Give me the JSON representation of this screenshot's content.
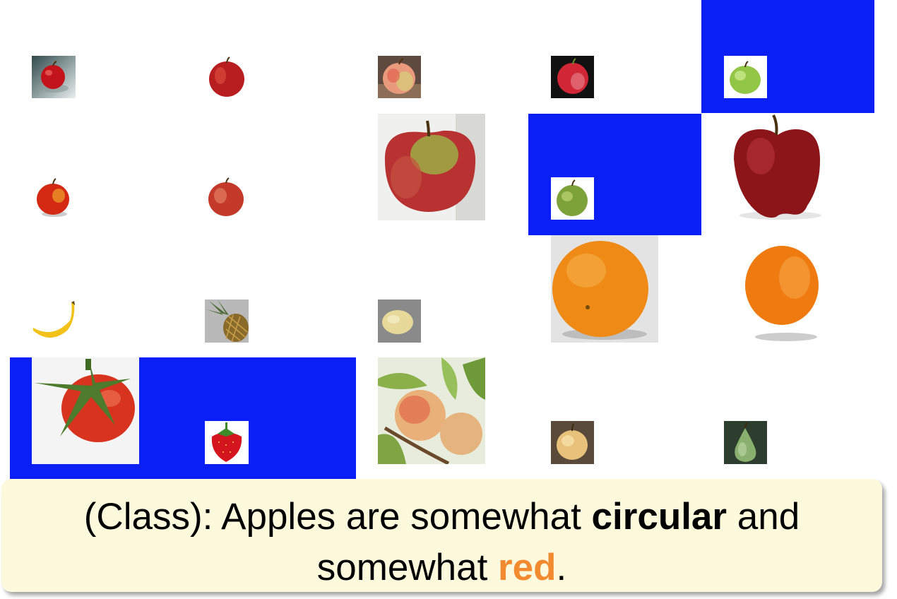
{
  "caption": {
    "prefix": "(Class): Apples are somewhat ",
    "word1": "circular",
    "middle": " and somewhat ",
    "word2": "red",
    "suffix": "."
  },
  "colors": {
    "highlight": "#0a1ff5",
    "accent": "#f28a30",
    "caption_bg": "#fdf9dd"
  },
  "fruits": [
    {
      "name": "red-apple",
      "highlighted": false
    },
    {
      "name": "red-apple",
      "highlighted": false
    },
    {
      "name": "pink-apple",
      "highlighted": false
    },
    {
      "name": "red-apple",
      "highlighted": false
    },
    {
      "name": "green-apple",
      "highlighted": true
    },
    {
      "name": "red-apple",
      "highlighted": false
    },
    {
      "name": "red-apple",
      "highlighted": false
    },
    {
      "name": "red-green-apple",
      "highlighted": false
    },
    {
      "name": "green-apple",
      "highlighted": true
    },
    {
      "name": "red-delicious-apple",
      "highlighted": false
    },
    {
      "name": "banana",
      "highlighted": false
    },
    {
      "name": "pineapple",
      "highlighted": false
    },
    {
      "name": "lemon",
      "highlighted": false
    },
    {
      "name": "orange",
      "highlighted": false
    },
    {
      "name": "orange",
      "highlighted": false
    },
    {
      "name": "tomato",
      "highlighted": true
    },
    {
      "name": "strawberry",
      "highlighted": true
    },
    {
      "name": "peach",
      "highlighted": false
    },
    {
      "name": "asian-pear",
      "highlighted": false
    },
    {
      "name": "pear",
      "highlighted": false
    }
  ]
}
